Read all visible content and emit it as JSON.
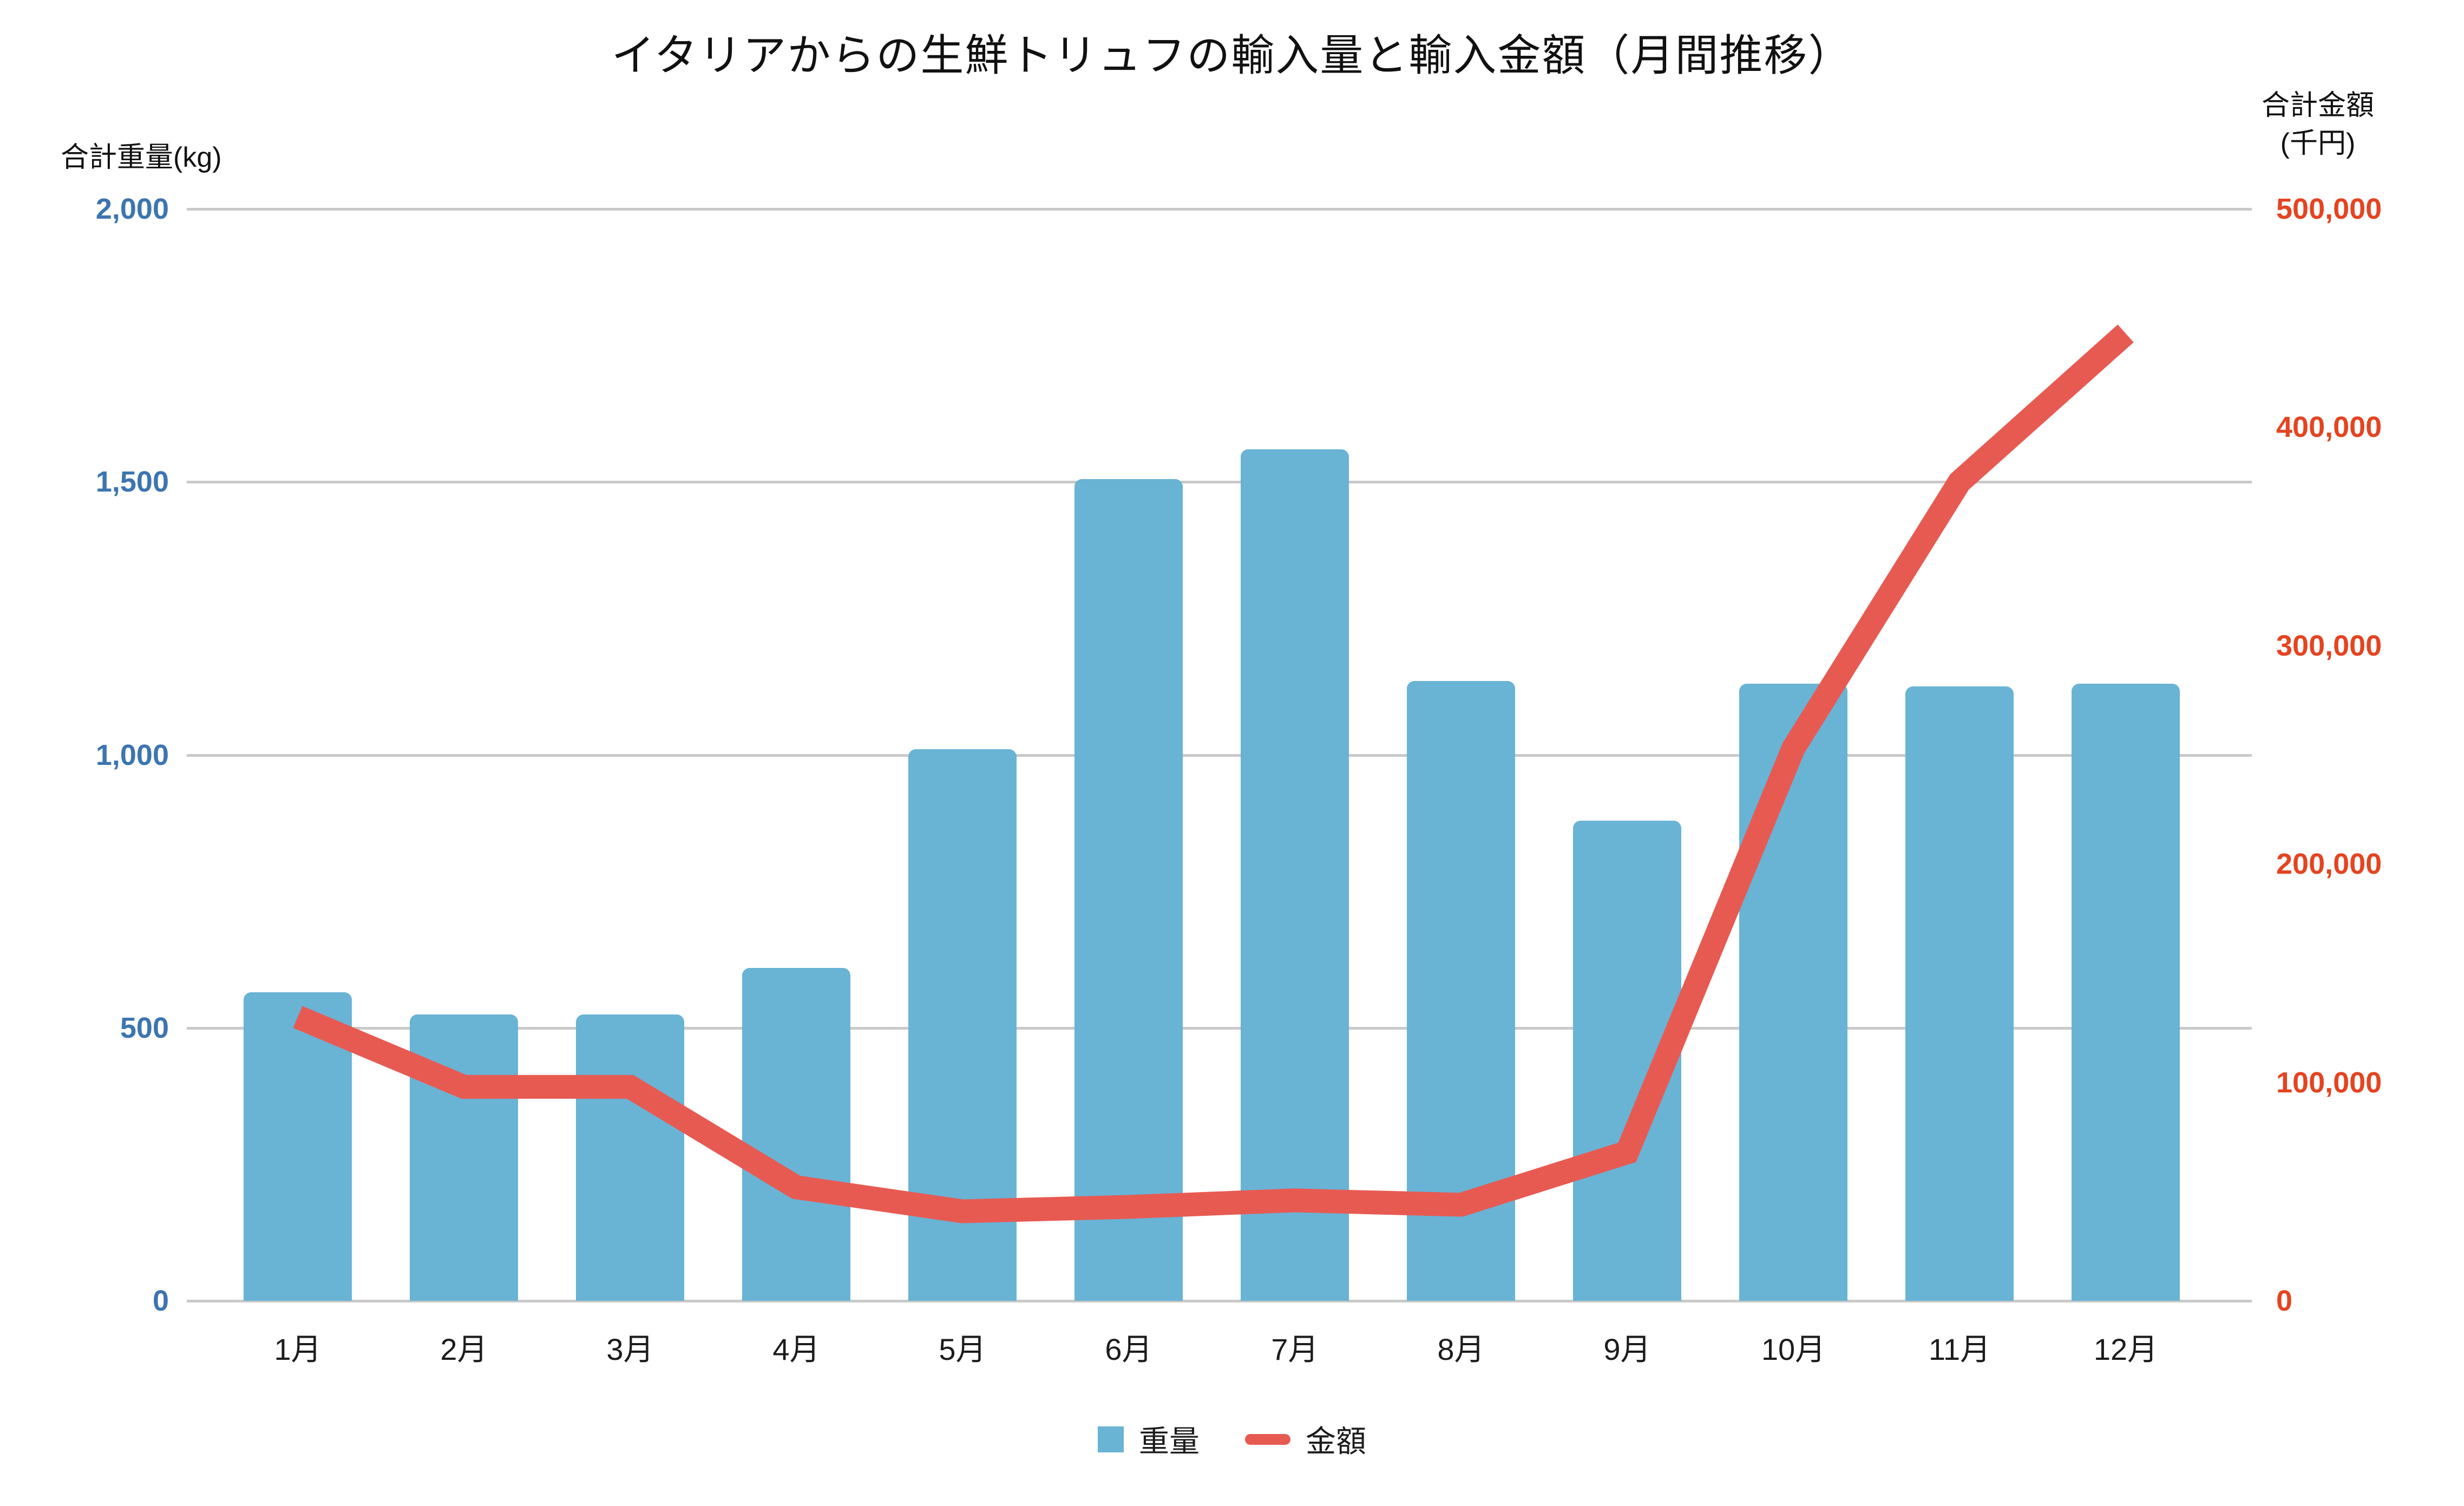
{
  "title": "イタリアからの生鮮トリュフの輸入量と輸入金額（月間推移）",
  "left_axis": {
    "title": "合計重量(kg)",
    "tick_labels": [
      "2,000",
      "1,500",
      "1,000",
      "500",
      "0"
    ],
    "text_color": "#3C75B0"
  },
  "right_axis": {
    "title_line1": "合計金額",
    "title_line2": "(千円)",
    "tick_labels": [
      "500,000",
      "400,000",
      "300,000",
      "200,000",
      "100,000",
      "0"
    ],
    "text_color": "#E44420"
  },
  "legend": {
    "bar_label": "重量",
    "line_label": "金額"
  },
  "colors": {
    "bar": "#69B3D5",
    "line": "#E75A52",
    "grid": "#C9C9C9",
    "title_text": "#111111"
  },
  "chart_data": {
    "type": "bar+line combo",
    "title": "イタリアからの生鮮トリュフの輸入量と輸入金額（月間推移）",
    "categories": [
      "1月",
      "2月",
      "3月",
      "4月",
      "5月",
      "6月",
      "7月",
      "8月",
      "9月",
      "10月",
      "11月",
      "12月"
    ],
    "series": [
      {
        "name": "重量",
        "type": "bar",
        "axis": "left",
        "unit": "kg",
        "color": "#69B3D5",
        "values": [
          565,
          525,
          525,
          610,
          1010,
          1505,
          1560,
          1135,
          880,
          1130,
          1125,
          1130
        ]
      },
      {
        "name": "金額",
        "type": "line",
        "axis": "right",
        "unit": "千円",
        "color": "#E75A52",
        "values": [
          130000,
          98000,
          98000,
          52000,
          41000,
          43000,
          46000,
          44000,
          68000,
          253000,
          375000,
          443000
        ]
      }
    ],
    "left_ylabel": "合計重量(kg)",
    "right_ylabel": "合計金額(千円)",
    "left_ylim": [
      0,
      2000
    ],
    "right_ylim": [
      0,
      500000
    ],
    "grid": true,
    "legend_position": "bottom"
  }
}
